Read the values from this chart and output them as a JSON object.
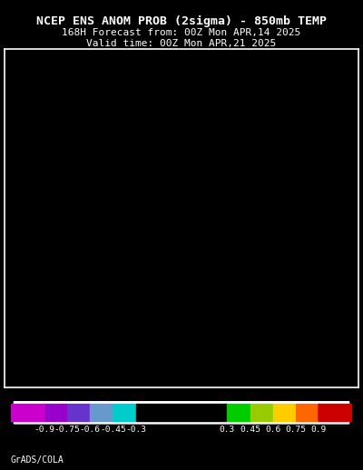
{
  "title_line1": "NCEP ENS ANOM PROB (2sigma) – 850mb TEMP",
  "title_line1_raw": "NCEP ENS ANOM PROB (2sigma) - 850mb TEMP",
  "title_line2": "168H Forecast from: 00Z Mon APR,14 2025",
  "title_line3": "Valid time: 00Z Mon APR,21 2025",
  "background_color": "#000000",
  "map_bg_color": "#000000",
  "border_color": "#ffffff",
  "title_color": "#ffffff",
  "colorbar_values": [
    -0.9,
    -0.75,
    -0.6,
    -0.45,
    -0.3,
    0.3,
    0.45,
    0.6,
    0.75,
    0.9
  ],
  "colorbar_colors": [
    "#cc00cc",
    "#9900cc",
    "#6633cc",
    "#6699cc",
    "#00cccc",
    "#000000",
    "#00cc00",
    "#99cc00",
    "#ffcc00",
    "#ff6600",
    "#cc0000"
  ],
  "colorbar_bg": "#ffffff",
  "colorbar_label_color": "#ffffff",
  "credit_text": "GrADS/COLA",
  "credit_color": "#ffffff",
  "font_family": "monospace",
  "title_fontsize": 9.5,
  "subtitle_fontsize": 8.0,
  "credit_fontsize": 7,
  "fig_width": 4.0,
  "fig_height": 5.18,
  "fig_dpi": 100
}
